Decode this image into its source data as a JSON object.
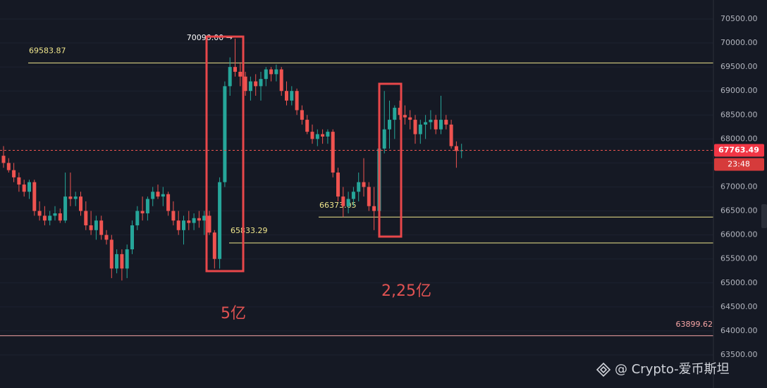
{
  "chart_data": {
    "type": "candlestick",
    "ylim": [
      62810,
      70896
    ],
    "yticks": [
      {
        "value": 63500,
        "label": "63500.00"
      },
      {
        "value": 64000,
        "label": "64000.00"
      },
      {
        "value": 64500,
        "label": "64500.00"
      },
      {
        "value": 65000,
        "label": "65000.00"
      },
      {
        "value": 65500,
        "label": "65500.00"
      },
      {
        "value": 66000,
        "label": "66000.00"
      },
      {
        "value": 66500,
        "label": "66500.00"
      },
      {
        "value": 67000,
        "label": "67000.00"
      },
      {
        "value": 67500,
        "label": "67500.00"
      },
      {
        "value": 68000,
        "label": "68000.00"
      },
      {
        "value": 68500,
        "label": "68500.00"
      },
      {
        "value": 69000,
        "label": "69000.00"
      },
      {
        "value": 69500,
        "label": "69500.00"
      },
      {
        "value": 70000,
        "label": "70000.00"
      },
      {
        "value": 70500,
        "label": "70500.00"
      }
    ],
    "grid": true,
    "up_color": "#26a69a",
    "down_color": "#ef5350",
    "open": [
      67650,
      67500,
      67350,
      67200,
      67050,
      66900,
      67100,
      66500,
      66400,
      66300,
      66400,
      66450,
      66300,
      66800,
      66750,
      66800,
      66500,
      66200,
      66100,
      66300,
      66000,
      65900,
      65300,
      65600,
      65300,
      65700,
      66200,
      66500,
      66450,
      66750,
      66900,
      66800,
      66850,
      66500,
      66300,
      66100,
      66300,
      66250,
      66350,
      66300,
      66400,
      66050,
      65500,
      67100,
      69100,
      69500,
      69400,
      69300,
      69000,
      69200,
      69100,
      69250,
      69450,
      69350,
      69450,
      69000,
      68800,
      69000,
      68600,
      68400,
      68150,
      68000,
      68100,
      68050,
      68150,
      67300,
      66800,
      66600,
      66750,
      66900,
      67100,
      67000,
      66600,
      66500,
      67800,
      68200,
      68400,
      68650,
      68500,
      68450,
      68400,
      68100,
      68300,
      68350,
      68400,
      68200,
      68400,
      68300,
      67850,
      67750
    ],
    "high": [
      67850,
      67600,
      67500,
      67300,
      67150,
      67150,
      67150,
      66700,
      66600,
      66500,
      66600,
      66550,
      67300,
      67300,
      66900,
      66900,
      66700,
      66500,
      66400,
      66400,
      66100,
      66000,
      65700,
      65700,
      65800,
      66300,
      66600,
      66800,
      66800,
      67000,
      67050,
      67000,
      66900,
      66700,
      66500,
      66400,
      66500,
      66450,
      66500,
      66500,
      66500,
      66100,
      67200,
      69200,
      69700,
      70090,
      69600,
      69400,
      69300,
      69350,
      69400,
      69500,
      69500,
      69550,
      69500,
      69200,
      69100,
      69050,
      68700,
      68500,
      68300,
      68200,
      68200,
      68200,
      68200,
      67400,
      67000,
      66900,
      67000,
      67300,
      67600,
      67100,
      67000,
      68000,
      69000,
      68800,
      68700,
      68800,
      68700,
      68600,
      68500,
      68400,
      68500,
      68600,
      68500,
      68900,
      68500,
      68400,
      67950,
      67900
    ],
    "low": [
      67400,
      67300,
      67100,
      66900,
      66800,
      66750,
      66400,
      66300,
      66200,
      66200,
      66300,
      66250,
      66250,
      66600,
      66600,
      66400,
      66100,
      66000,
      65900,
      65900,
      65800,
      65100,
      65200,
      65050,
      65100,
      65600,
      66100,
      66300,
      66300,
      66600,
      66750,
      66600,
      66400,
      66200,
      66000,
      65800,
      66100,
      66100,
      66150,
      66000,
      66000,
      65300,
      65300,
      67000,
      68900,
      69300,
      69100,
      68900,
      68800,
      68900,
      68800,
      69100,
      69200,
      69200,
      68900,
      68700,
      68700,
      68500,
      68300,
      68100,
      67900,
      67850,
      67900,
      67900,
      67200,
      66700,
      66373,
      66450,
      66600,
      66700,
      66800,
      66500,
      66100,
      66400,
      67700,
      67800,
      68000,
      68400,
      68300,
      68200,
      67900,
      67900,
      68000,
      68200,
      68100,
      68100,
      68200,
      67800,
      67400,
      67600
    ],
    "close": [
      67500,
      67350,
      67200,
      67050,
      66900,
      67100,
      66500,
      66400,
      66300,
      66400,
      66450,
      66300,
      66800,
      66750,
      66800,
      66500,
      66200,
      66100,
      66300,
      66000,
      65900,
      65300,
      65600,
      65300,
      65700,
      66200,
      66500,
      66450,
      66750,
      66900,
      66800,
      66850,
      66500,
      66300,
      66100,
      66300,
      66250,
      66350,
      66300,
      66400,
      66050,
      65500,
      67100,
      69100,
      69500,
      69400,
      69300,
      69000,
      69200,
      69100,
      69250,
      69450,
      69350,
      69450,
      69000,
      68800,
      69000,
      68600,
      68400,
      68150,
      68000,
      68100,
      68050,
      68150,
      67300,
      66800,
      66600,
      66750,
      66900,
      67100,
      67000,
      66600,
      66500,
      67800,
      68200,
      68400,
      68650,
      68500,
      68450,
      68400,
      68100,
      68300,
      68350,
      68400,
      68200,
      68400,
      68300,
      67850,
      67750,
      67763.49
    ],
    "horizontal_lines": [
      {
        "value": 69583.87,
        "color": "#f0e68c"
      },
      {
        "value": 66373.05,
        "color": "#f0e68c"
      },
      {
        "value": 65833.29,
        "color": "#f0e68c"
      },
      {
        "value": 63899.62,
        "color": "#f7a5a5"
      }
    ],
    "high_marker": {
      "value": 70090,
      "label": "70090.00 →"
    },
    "last_price": 67763.49,
    "countdown": "23:48",
    "annotations": [
      "5亿",
      "2,25亿"
    ],
    "watermark": "@ Crypto-爱币斯坦"
  }
}
